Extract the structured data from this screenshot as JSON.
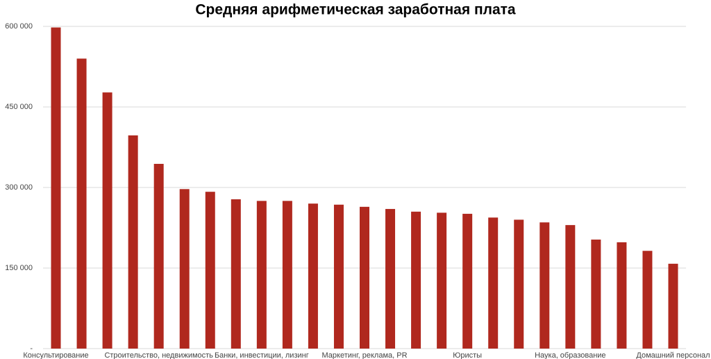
{
  "chart_data": {
    "type": "bar",
    "title": "Средняя арифметическая заработная плата",
    "categories": [
      "Консультирование",
      null,
      null,
      null,
      "Строительство, недвижимость",
      null,
      null,
      null,
      "Банки, инвестиции, лизинг",
      null,
      null,
      null,
      "Маркетинг, реклама, PR",
      null,
      null,
      null,
      "Юристы",
      null,
      null,
      null,
      "Наука, образование",
      null,
      null,
      null,
      "Домашний персонал"
    ],
    "values": [
      598000,
      540000,
      477000,
      397000,
      344000,
      297000,
      292000,
      278000,
      275000,
      275000,
      270000,
      268000,
      264000,
      260000,
      255000,
      253000,
      251000,
      244000,
      240000,
      235000,
      230000,
      203000,
      198000,
      182000,
      158000
    ],
    "color": "#b0281e",
    "ylim": [
      0,
      600000
    ],
    "yticks": [
      {
        "value": 0,
        "label": "-"
      },
      {
        "value": 150000,
        "label": "150 000"
      },
      {
        "value": 300000,
        "label": "300 000"
      },
      {
        "value": 450000,
        "label": "450 000"
      },
      {
        "value": 600000,
        "label": "600 000"
      }
    ],
    "grid": true
  }
}
